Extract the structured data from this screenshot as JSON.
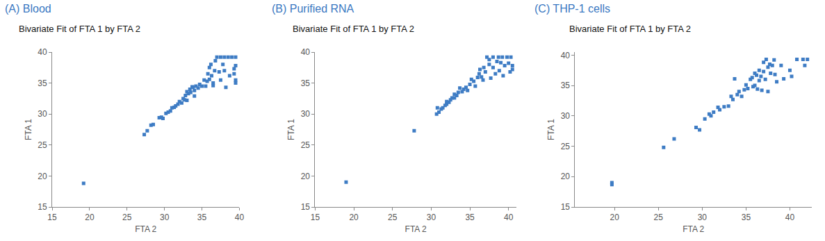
{
  "chart_data": [
    {
      "type": "scatter",
      "title": "(A) Blood",
      "subtitle": "Bivariate Fit of FTA 1 by FTA 2",
      "x_label": "FTA 2",
      "y_label": "FTA 1",
      "color": "#3e7cc4",
      "marker": "square",
      "grid": false,
      "x": [
        19.2,
        27.3,
        27.7,
        28.2,
        28.5,
        29.3,
        29.6,
        29.8,
        30.2,
        30.5,
        30.8,
        31,
        31.3,
        31.5,
        31.8,
        32,
        32.3,
        32.5,
        32.7,
        32.8,
        33,
        33,
        33.2,
        33.4,
        33.5,
        33.8,
        34,
        34,
        34.2,
        34.5,
        35.3,
        35.5,
        35.7,
        35.8,
        36,
        36,
        36.2,
        36.3,
        36.5,
        36.5,
        36.7,
        36.8,
        37,
        37.3,
        37.5,
        37.5,
        37.8,
        38,
        38,
        38.2,
        38.5,
        38.7,
        39,
        39.3,
        39.3,
        39.5,
        39.5,
        39.5,
        39.5,
        35,
        34.7,
        33.7
      ],
      "y": [
        18.8,
        26.7,
        27.3,
        28.2,
        28.3,
        29.4,
        29.5,
        29.3,
        30.1,
        30.3,
        30.5,
        31,
        31.1,
        31.3,
        31.6,
        32,
        31.8,
        32.5,
        32.3,
        33,
        32.2,
        33.6,
        33.3,
        34,
        33.5,
        34.3,
        33.8,
        32.9,
        34.5,
        34.2,
        35.5,
        34.5,
        35.3,
        36.5,
        37.5,
        35.6,
        38,
        36.2,
        35,
        34.6,
        37,
        38.6,
        39.2,
        36.8,
        39.2,
        35.5,
        38,
        39.2,
        37,
        34.3,
        39.2,
        36.2,
        39.2,
        37.3,
        36.5,
        35.5,
        35,
        39.2,
        37.8,
        34.5,
        34.8,
        34.4
      ],
      "xlim": [
        15,
        40
      ],
      "ylim": [
        15,
        40
      ],
      "xticks": [
        15,
        20,
        25,
        30,
        35,
        40
      ],
      "yticks": [
        15,
        20,
        25,
        30,
        35,
        40
      ]
    },
    {
      "type": "scatter",
      "title": "(B) Purified RNA",
      "subtitle": "Bivariate Fit of FTA 1 by FTA 2",
      "x_label": "FTA 2",
      "y_label": "FTA 1",
      "color": "#3e7cc4",
      "marker": "square",
      "grid": false,
      "x": [
        19,
        27.8,
        30.7,
        30.8,
        31,
        31.3,
        31.5,
        31.8,
        32,
        32,
        32.3,
        32.5,
        32.7,
        33,
        33,
        33.3,
        33.5,
        33.7,
        34,
        34.2,
        34.5,
        34.7,
        35,
        35.2,
        35.5,
        35.7,
        36,
        36.2,
        36.5,
        36.7,
        36.8,
        37,
        37.2,
        37.5,
        37.7,
        38,
        38,
        38.3,
        38.5,
        38.7,
        38.8,
        39,
        39.2,
        39.3,
        39.5,
        39.8,
        40,
        40.2,
        40.3,
        40.5,
        40.5,
        37.5,
        36.3
      ],
      "y": [
        19,
        27.3,
        30,
        31,
        30.3,
        30.8,
        31,
        31.4,
        31.6,
        32,
        31.9,
        32.3,
        32.6,
        32.6,
        33.2,
        33,
        33.5,
        34.2,
        33.6,
        34,
        34.3,
        33.8,
        34.8,
        35.6,
        35.3,
        34.5,
        35.9,
        36.5,
        36,
        35.5,
        37.5,
        36.8,
        39.2,
        38,
        35.8,
        39.2,
        37.5,
        36.5,
        38.5,
        39.2,
        37,
        38.3,
        39.2,
        36.2,
        37.8,
        39.2,
        38.2,
        36.8,
        39.2,
        37.8,
        37.2,
        38.8,
        37.2
      ],
      "xlim": [
        15,
        41
      ],
      "ylim": [
        15,
        40
      ],
      "xticks": [
        15,
        20,
        25,
        30,
        35,
        40
      ],
      "yticks": [
        15,
        20,
        25,
        30,
        35,
        40
      ]
    },
    {
      "type": "scatter",
      "title": "(C) THP-1 cells",
      "subtitle": "Bivariate Fit of FTA 1 by FTA 2",
      "x_label": "FTA 2",
      "y_label": "FTA 1",
      "color": "#3e7cc4",
      "marker": "square",
      "grid": false,
      "x": [
        19.7,
        19.7,
        25.6,
        26.8,
        29.3,
        29.7,
        30.3,
        30.8,
        31,
        31.3,
        31.8,
        32,
        32.5,
        33,
        33.3,
        33.5,
        33.7,
        34,
        34.2,
        34.5,
        34.8,
        35,
        35.2,
        35.5,
        35.7,
        35.8,
        36,
        36,
        36.2,
        36.3,
        36.5,
        36.5,
        36.7,
        36.8,
        37,
        37,
        37.2,
        37.3,
        37.5,
        37.5,
        37.7,
        37.8,
        38,
        38.2,
        38.3,
        38.5,
        39,
        39.3,
        40,
        40.2,
        40.8,
        41.5,
        41.7,
        42
      ],
      "y": [
        18.7,
        19,
        24.8,
        26.2,
        28.1,
        27.7,
        29.5,
        30.3,
        30,
        30.6,
        31.4,
        31,
        31.5,
        31.6,
        33.2,
        32.7,
        36.1,
        33.5,
        34,
        33.2,
        34.3,
        35.1,
        34.5,
        36,
        36.3,
        34.8,
        37,
        35,
        36.7,
        34.4,
        37.5,
        35.8,
        36.5,
        34.2,
        38.8,
        37.3,
        36,
        39.3,
        38,
        34,
        38.5,
        37,
        38.3,
        39.2,
        36.8,
        35.6,
        38.3,
        36.1,
        37.5,
        36.5,
        39.3,
        39.3,
        38.3,
        39.3
      ],
      "xlim": [
        15.5,
        42.5
      ],
      "ylim": [
        15,
        40.5
      ],
      "xticks": [
        20,
        25,
        30,
        35,
        40
      ],
      "yticks": [
        15,
        20,
        25,
        30,
        35,
        40
      ]
    }
  ]
}
